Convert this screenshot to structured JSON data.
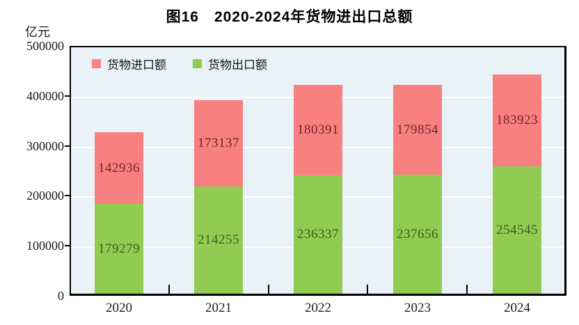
{
  "chart_data": {
    "type": "bar",
    "stacked": true,
    "title": "图16　2020-2024年货物进出口总额",
    "unit_label": "亿元",
    "categories": [
      "2020",
      "2021",
      "2022",
      "2023",
      "2024"
    ],
    "series": [
      {
        "name": "货物进口额",
        "color": "#f98080",
        "label_color": "#6e2329",
        "values": [
          142936,
          173137,
          180391,
          179854,
          183923
        ]
      },
      {
        "name": "货物出口额",
        "color": "#92cb51",
        "label_color": "#3b5a20",
        "values": [
          179279,
          214255,
          236337,
          237656,
          254545
        ]
      }
    ],
    "stack_order_bottom_to_top": [
      "货物出口额",
      "货物进口额"
    ],
    "ylim": [
      0,
      500000
    ],
    "ytick_interval": 100000,
    "yticks": [
      "0",
      "100000",
      "200000",
      "300000",
      "400000",
      "500000"
    ],
    "grid": true,
    "legend_position": "top-left-inside",
    "colors": {
      "plot_background": "#e9f2f7",
      "gridline": "#ffffff",
      "axis_border": "#000000",
      "text": "#1a1a1a"
    }
  }
}
